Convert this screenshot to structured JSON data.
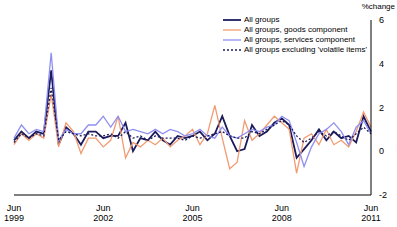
{
  "chart_data": {
    "type": "line",
    "y_label": "%change",
    "categories": [
      "Jun 1999",
      null,
      null,
      null,
      null,
      null,
      null,
      null,
      null,
      null,
      null,
      null,
      "Jun 2002",
      null,
      null,
      null,
      null,
      null,
      null,
      null,
      null,
      null,
      null,
      null,
      "Jun 2005",
      null,
      null,
      null,
      null,
      null,
      null,
      null,
      null,
      null,
      null,
      null,
      "Jun 2008",
      null,
      null,
      null,
      null,
      null,
      null,
      null,
      null,
      null,
      null,
      null,
      "Jun 2011"
    ],
    "ylim": [
      -2,
      6
    ],
    "yticks": [
      -2,
      0,
      2,
      4,
      6
    ],
    "grid": false,
    "legend": "upper right",
    "series": [
      {
        "name": "All groups",
        "color": "#1b1b5c",
        "line_style": "solid",
        "values": [
          0.5,
          0.9,
          0.6,
          0.9,
          0.8,
          3.7,
          0.3,
          1.1,
          0.8,
          0.3,
          0.9,
          0.9,
          0.6,
          0.7,
          0.7,
          1.3,
          0.0,
          0.6,
          0.5,
          0.9,
          0.5,
          0.3,
          0.7,
          0.6,
          0.7,
          0.9,
          0.5,
          0.8,
          1.6,
          0.7,
          0.0,
          0.1,
          1.2,
          0.7,
          0.9,
          1.3,
          1.5,
          1.2,
          -0.3,
          0.1,
          0.5,
          1.0,
          0.5,
          0.9,
          0.6,
          0.7,
          0.4,
          1.6,
          0.9
        ]
      },
      {
        "name": "All groups, goods component",
        "color": "#f29b72",
        "line_style": "solid",
        "values": [
          0.3,
          0.8,
          0.5,
          0.8,
          0.6,
          2.6,
          0.2,
          1.3,
          0.9,
          -0.1,
          0.6,
          0.6,
          0.2,
          0.5,
          1.6,
          -0.3,
          0.4,
          0.2,
          0.5,
          0.3,
          0.6,
          0.2,
          0.5,
          0.7,
          1.0,
          0.3,
          0.8,
          2.1,
          0.6,
          -0.8,
          -0.5,
          1.4,
          0.5,
          0.8,
          1.2,
          1.6,
          1.3,
          1.0,
          -1.0,
          0.6,
          0.8,
          0.3,
          1.0,
          0.3,
          0.5,
          0.2,
          0.9,
          1.8,
          1.1
        ]
      },
      {
        "name": "All groups, services component",
        "color": "#8f8ff2",
        "line_style": "solid",
        "values": [
          0.6,
          1.2,
          0.8,
          1.0,
          0.9,
          4.5,
          0.5,
          1.0,
          0.8,
          0.8,
          1.2,
          1.2,
          1.6,
          1.1,
          1.6,
          0.9,
          1.0,
          0.9,
          0.8,
          1.0,
          0.8,
          1.0,
          0.9,
          0.7,
          0.8,
          1.0,
          0.7,
          0.6,
          1.1,
          0.7,
          0.6,
          0.8,
          1.0,
          0.9,
          1.1,
          1.2,
          1.6,
          1.4,
          0.4,
          -0.7,
          0.2,
          0.8,
          1.0,
          1.3,
          0.9,
          0.3,
          1.1,
          1.4,
          0.8
        ]
      },
      {
        "name": "All groups excluding 'volatile items'",
        "color": "#1b1b5c",
        "line_style": "dotted",
        "values": [
          0.4,
          0.8,
          0.6,
          0.8,
          0.7,
          2.9,
          0.5,
          0.9,
          0.8,
          0.7,
          0.8,
          0.7,
          0.7,
          0.8,
          0.6,
          0.9,
          0.6,
          0.7,
          0.5,
          0.7,
          0.6,
          0.6,
          0.6,
          0.5,
          0.7,
          0.6,
          0.7,
          0.8,
          0.9,
          0.7,
          0.6,
          0.6,
          0.9,
          0.8,
          1.0,
          1.2,
          1.4,
          1.2,
          0.7,
          0.4,
          0.6,
          0.9,
          0.7,
          0.9,
          0.7,
          0.5,
          0.8,
          1.1,
          0.8
        ]
      }
    ]
  }
}
